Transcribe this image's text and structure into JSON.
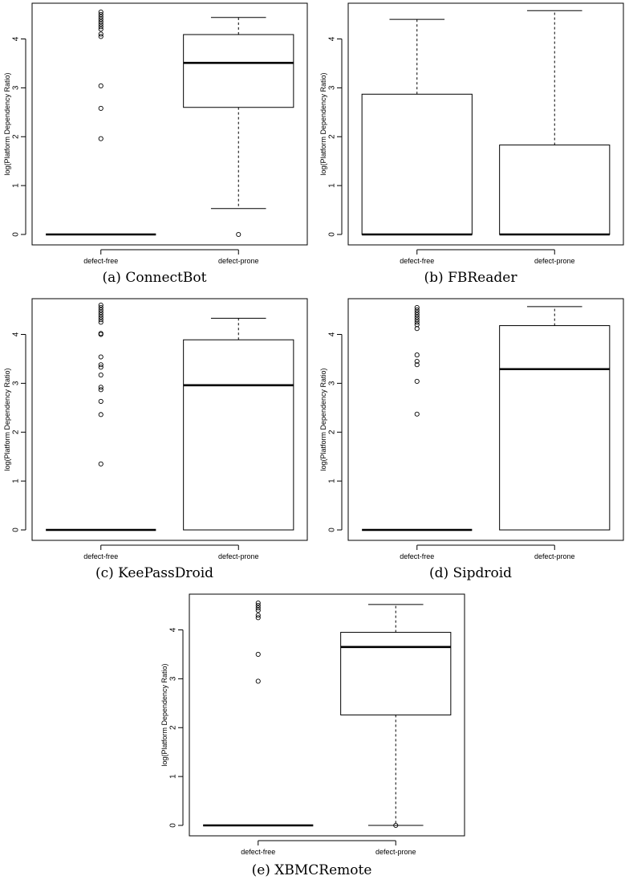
{
  "chart_data": [
    {
      "type": "box",
      "caption": "(a) ConnectBot",
      "ylabel": "log(Platform Dependency Ratio)",
      "ylim": [
        0,
        4.6
      ],
      "yticks": [
        0,
        1,
        2,
        3,
        4
      ],
      "categories": [
        "defect-free",
        "defect-prone"
      ],
      "boxes": [
        {
          "min": 0,
          "q1": 0,
          "median": 0,
          "q3": 0,
          "max": 0,
          "outliers": [
            1.96,
            2.58,
            3.04,
            4.05,
            4.1,
            4.2,
            4.25,
            4.3,
            4.35,
            4.4,
            4.45,
            4.5,
            4.55
          ]
        },
        {
          "min": 0.53,
          "q1": 2.6,
          "median": 3.51,
          "q3": 4.09,
          "max": 4.44,
          "outliers": [
            0
          ]
        }
      ]
    },
    {
      "type": "box",
      "caption": "(b) FBReader",
      "ylabel": "log(Platform Dependency Ratio)",
      "ylim": [
        0,
        4.6
      ],
      "yticks": [
        0,
        1,
        2,
        3,
        4
      ],
      "categories": [
        "defect-free",
        "defect-prone"
      ],
      "boxes": [
        {
          "min": 0,
          "q1": 0,
          "median": 0,
          "q3": 2.87,
          "max": 4.4,
          "outliers": []
        },
        {
          "min": 0,
          "q1": 0,
          "median": 0,
          "q3": 1.83,
          "max": 4.58,
          "outliers": []
        }
      ]
    },
    {
      "type": "box",
      "caption": "(c) KeePassDroid",
      "ylabel": "log(Platform Dependency Ratio)",
      "ylim": [
        0,
        4.6
      ],
      "yticks": [
        0,
        1,
        2,
        3,
        4
      ],
      "categories": [
        "defect-free",
        "defect-prone"
      ],
      "boxes": [
        {
          "min": 0,
          "q1": 0,
          "median": 0,
          "q3": 0,
          "max": 0,
          "outliers": [
            1.35,
            2.36,
            2.63,
            2.87,
            2.92,
            3.17,
            3.33,
            3.38,
            3.54,
            4.0,
            4.02,
            4.25,
            4.3,
            4.35,
            4.4,
            4.45,
            4.5,
            4.55,
            4.6
          ]
        },
        {
          "min": 0,
          "q1": 0,
          "median": 2.96,
          "q3": 3.89,
          "max": 4.33,
          "outliers": []
        }
      ]
    },
    {
      "type": "box",
      "caption": "(d) Sipdroid",
      "ylabel": "log(Platform Dependency Ratio)",
      "ylim": [
        0,
        4.6
      ],
      "yticks": [
        0,
        1,
        2,
        3,
        4
      ],
      "categories": [
        "defect-free",
        "defect-prone"
      ],
      "boxes": [
        {
          "min": 0,
          "q1": 0,
          "median": 0,
          "q3": 0,
          "max": 0,
          "outliers": [
            2.37,
            3.04,
            3.38,
            3.45,
            3.58,
            4.12,
            4.2,
            4.25,
            4.3,
            4.35,
            4.4,
            4.45,
            4.5,
            4.55
          ]
        },
        {
          "min": 0,
          "q1": 0,
          "median": 3.29,
          "q3": 4.18,
          "max": 4.57,
          "outliers": []
        }
      ]
    },
    {
      "type": "box",
      "caption": "(e) XBMCRemote",
      "ylabel": "log(Platform Dependency Ratio)",
      "ylim": [
        0,
        4.6
      ],
      "yticks": [
        0,
        1,
        2,
        3,
        4
      ],
      "categories": [
        "defect-free",
        "defect-prone"
      ],
      "boxes": [
        {
          "min": 0,
          "q1": 0,
          "median": 0,
          "q3": 0,
          "max": 0,
          "outliers": [
            2.95,
            3.5,
            4.25,
            4.3,
            4.4,
            4.45,
            4.5,
            4.55
          ]
        },
        {
          "min": 0,
          "q1": 2.26,
          "median": 3.65,
          "q3": 3.95,
          "max": 4.52,
          "outliers": [
            0
          ]
        }
      ]
    }
  ]
}
